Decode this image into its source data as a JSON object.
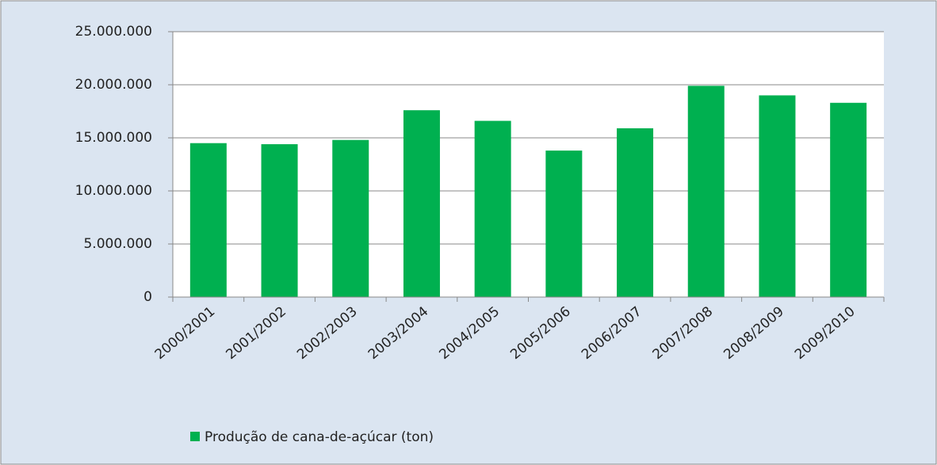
{
  "chart_data": {
    "type": "bar",
    "categories": [
      "2000/2001",
      "2001/2002",
      "2002/2003",
      "2003/2004",
      "2004/2005",
      "2005/2006",
      "2006/2007",
      "2007/2008",
      "2008/2009",
      "2009/2010"
    ],
    "series": [
      {
        "name": "Produção de cana-de-açúcar (ton)",
        "color": "#00b050",
        "values": [
          14500000,
          14400000,
          14800000,
          17600000,
          16600000,
          13800000,
          15900000,
          19900000,
          19000000,
          18300000
        ]
      }
    ],
    "ylim": [
      0,
      25000000
    ],
    "yticks": [
      0,
      {
        "value": 5000000,
        "label": "5.000.000"
      },
      {
        "value": 10000000,
        "label": "10.000.000"
      },
      {
        "value": 15000000,
        "label": "15.000.000"
      },
      {
        "value": 20000000,
        "label": "20.000.000"
      },
      {
        "value": 25000000,
        "label": "25.000.000"
      }
    ],
    "grid": true,
    "legend": "bottom-left"
  }
}
